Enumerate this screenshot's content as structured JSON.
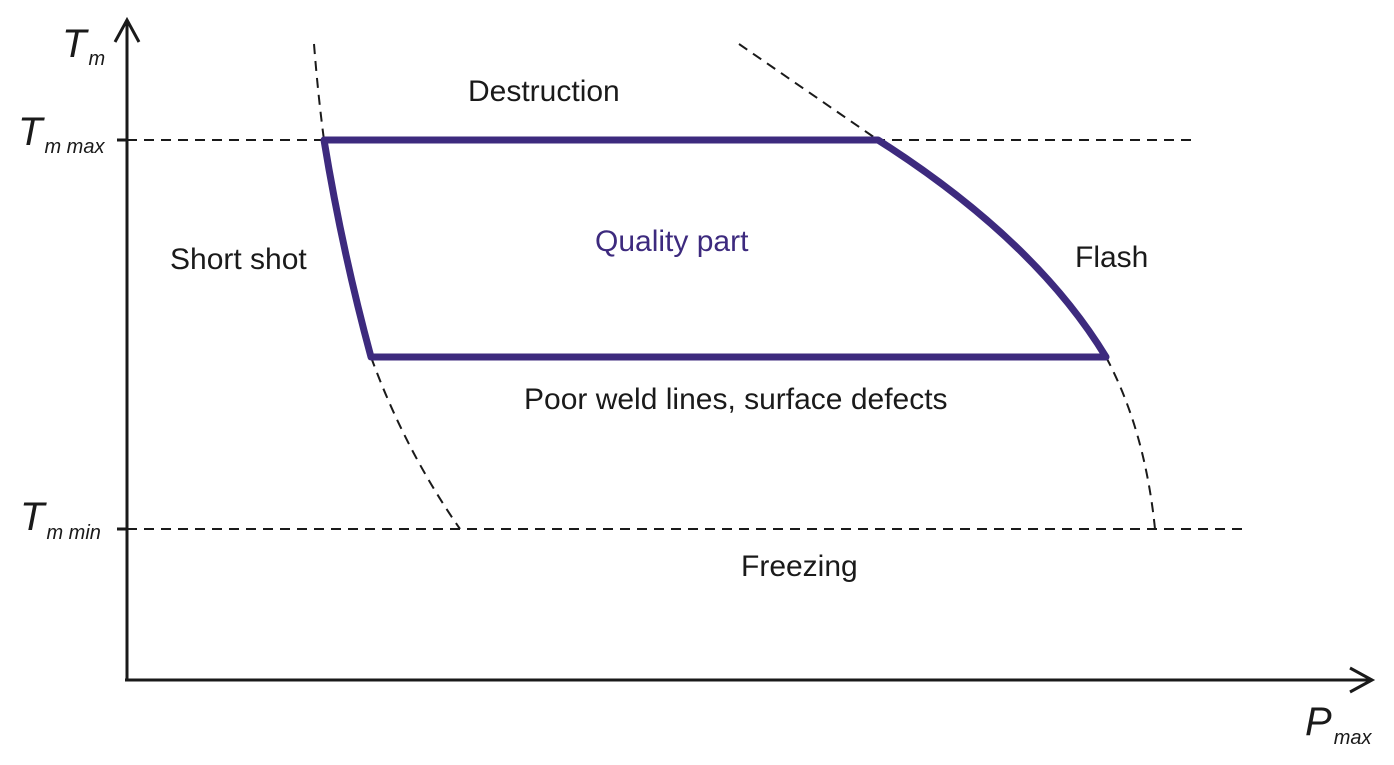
{
  "axes": {
    "y_symbol": "T",
    "y_subscript": "m",
    "x_symbol": "P",
    "x_subscript": "max",
    "tmax_symbol": "T",
    "tmax_subscript": "m max",
    "tmin_symbol": "T",
    "tmin_subscript": "m min"
  },
  "regions": {
    "top": "Destruction",
    "left": "Short shot",
    "center": "Quality part",
    "right": "Flash",
    "lower": "Poor weld lines, surface defects",
    "bottom": "Freezing"
  },
  "colors": {
    "window": "#3d2a7e",
    "lines": "#1a1a1a",
    "background": "#ffffff"
  }
}
